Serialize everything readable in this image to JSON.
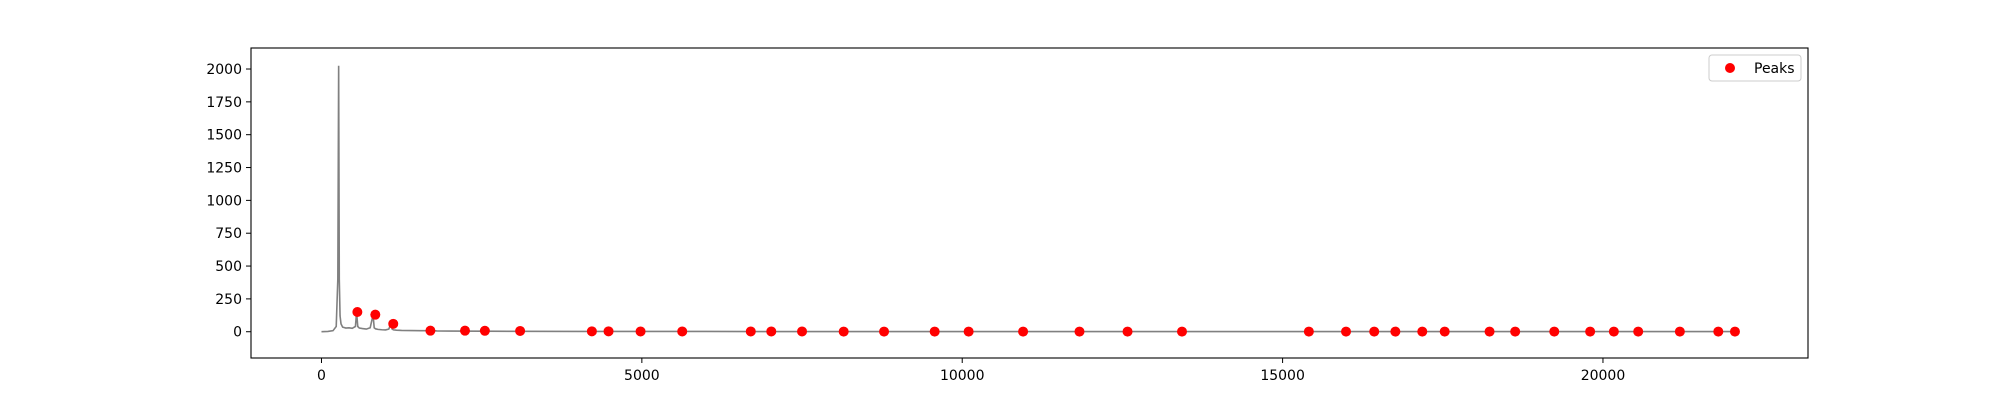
{
  "chart_data": {
    "type": "line",
    "xlim": [
      -1100,
      23200
    ],
    "ylim": [
      -200,
      2160
    ],
    "x_ticks": [
      0,
      5000,
      10000,
      15000,
      20000
    ],
    "y_ticks": [
      0,
      250,
      500,
      750,
      1000,
      1250,
      1500,
      1750,
      2000
    ],
    "grid": false,
    "legend": {
      "placement": "top-right",
      "entries": [
        "Peaks"
      ]
    },
    "colors": {
      "line": "#808080",
      "peaks": "#ff0000"
    },
    "series": [
      {
        "type": "line",
        "x": [
          0,
          100,
          180,
          230,
          255,
          268,
          278,
          290,
          305,
          330,
          380,
          430,
          480,
          530,
          548,
          566,
          590,
          640,
          700,
          760,
          805,
          823,
          845,
          880,
          940,
          1000,
          1050,
          1085,
          1103,
          1125,
          1170,
          1250,
          1400,
          1550,
          1660,
          1700,
          1800,
          2000,
          2500,
          3000,
          4000,
          6000,
          8000,
          10000,
          13000,
          16000,
          19000,
          22000
        ],
        "y": [
          0,
          2,
          8,
          40,
          400,
          2025,
          400,
          120,
          60,
          35,
          28,
          30,
          26,
          40,
          150,
          40,
          28,
          24,
          20,
          30,
          128,
          30,
          22,
          18,
          15,
          14,
          20,
          60,
          20,
          14,
          12,
          10,
          9,
          8,
          8,
          10,
          6,
          5,
          4,
          3,
          2,
          2,
          1,
          1,
          1,
          1,
          1,
          1
        ]
      },
      {
        "type": "scatter",
        "name": "Peaks",
        "x": [
          560,
          840,
          1120,
          1700,
          2240,
          2550,
          3100,
          4220,
          4480,
          4980,
          5630,
          6700,
          7020,
          7500,
          8150,
          8780,
          9570,
          10100,
          10950,
          11830,
          12580,
          13430,
          15410,
          15990,
          16430,
          16760,
          17180,
          17530,
          18230,
          18630,
          19240,
          19800,
          20170,
          20550,
          21200,
          21800,
          22060
        ],
        "y": [
          150,
          130,
          60,
          8,
          8,
          7,
          6,
          3,
          3,
          2,
          2,
          2,
          2,
          2,
          1,
          1,
          1,
          1,
          1,
          1,
          1,
          1,
          1,
          1,
          1,
          1,
          1,
          1,
          1,
          1,
          1,
          1,
          1,
          1,
          1,
          1,
          1
        ]
      }
    ]
  }
}
